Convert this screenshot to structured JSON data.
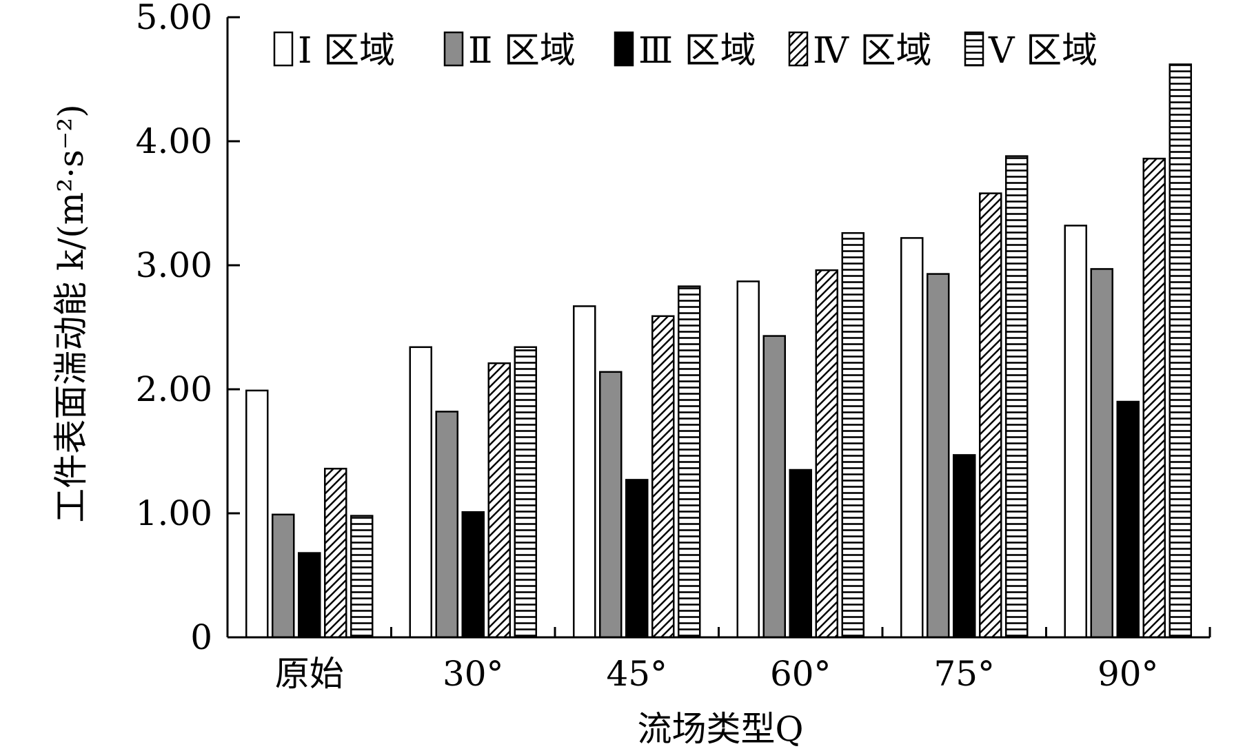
{
  "chart_data": {
    "type": "bar",
    "categories": [
      "原始",
      "30°",
      "45°",
      "60°",
      "75°",
      "90°"
    ],
    "series": [
      {
        "name": "Ⅰ 区域",
        "pattern": "white",
        "values": [
          1.99,
          2.34,
          2.67,
          2.87,
          3.22,
          3.32
        ]
      },
      {
        "name": "Ⅱ 区域",
        "pattern": "gray",
        "values": [
          0.99,
          1.82,
          2.14,
          2.43,
          2.93,
          2.97
        ]
      },
      {
        "name": "Ⅲ 区域",
        "pattern": "black",
        "values": [
          0.68,
          1.01,
          1.27,
          1.35,
          1.47,
          1.9
        ]
      },
      {
        "name": "Ⅳ 区域",
        "pattern": "diagonal",
        "values": [
          1.36,
          2.21,
          2.59,
          2.96,
          3.58,
          3.86
        ]
      },
      {
        "name": "Ⅴ 区域",
        "pattern": "horizontal",
        "values": [
          0.98,
          2.34,
          2.83,
          3.26,
          3.88,
          4.62
        ]
      }
    ],
    "y_ticks": [
      "0",
      "1.00",
      "2.00",
      "3.00",
      "4.00",
      "5.00"
    ],
    "ylim": [
      0,
      5
    ],
    "xlabel": "流场类型Q",
    "ylabel": "工件表面湍动能 k/(m²·s⁻²)",
    "legend_position": "top",
    "grid": false
  }
}
